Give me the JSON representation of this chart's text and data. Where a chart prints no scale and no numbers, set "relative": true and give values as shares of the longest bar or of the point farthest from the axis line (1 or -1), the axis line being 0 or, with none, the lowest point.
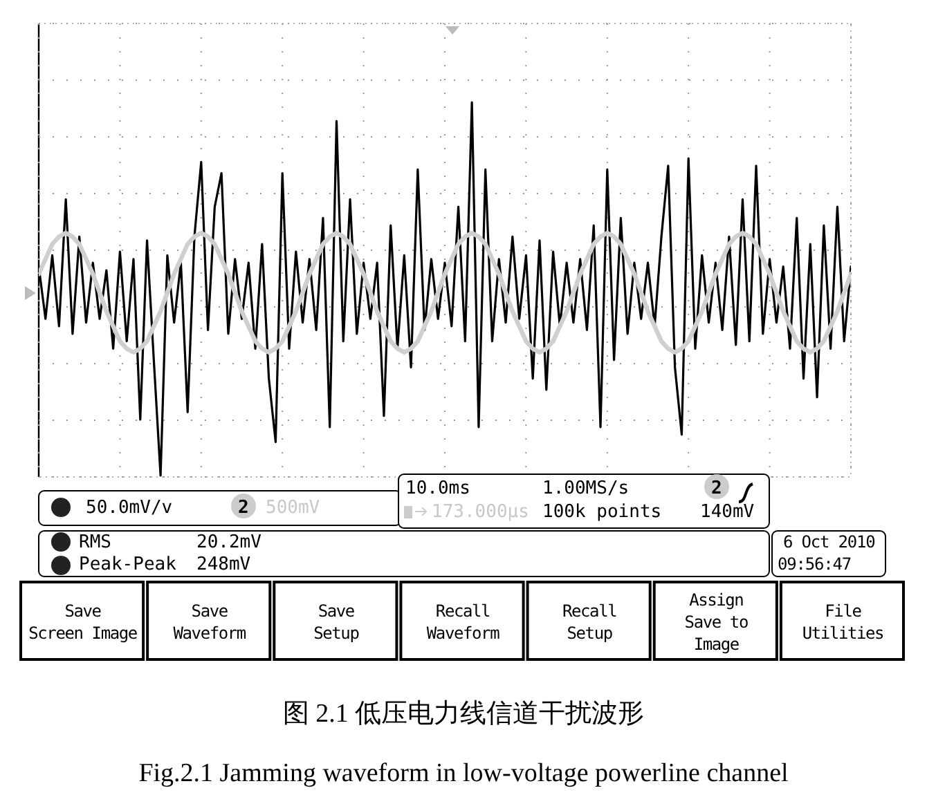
{
  "chart_data": {
    "type": "line",
    "relative": true,
    "grid": true,
    "title": "图 2.1  低压电力线信道干扰波形",
    "subtitle": "Fig.2.1 Jamming waveform in low-voltage powerline channel",
    "categories": [
      null,
      null,
      null,
      null,
      null,
      null,
      null,
      null,
      null,
      null,
      null,
      null,
      null,
      null,
      null,
      null,
      null,
      null,
      null,
      null,
      null,
      null,
      null,
      null,
      null,
      null,
      null,
      null,
      null,
      null,
      null,
      null,
      null,
      null,
      null,
      null,
      null,
      null,
      null,
      null,
      null,
      null,
      null,
      null,
      null,
      null,
      null,
      null,
      null,
      null,
      null,
      null,
      null,
      null,
      null,
      null,
      null,
      null,
      null,
      null,
      null,
      null,
      null,
      null,
      null,
      null,
      null,
      null,
      null,
      null,
      null,
      null,
      null,
      null,
      null,
      null,
      null,
      null,
      null,
      null,
      null,
      null,
      null,
      null,
      null,
      null,
      null,
      null,
      null,
      null,
      null,
      null,
      null,
      null,
      null,
      null,
      null,
      null,
      null,
      null,
      null,
      null,
      null,
      null,
      null,
      null,
      null,
      null,
      null,
      null,
      null,
      null,
      null,
      null,
      null,
      null,
      null,
      null,
      null,
      null,
      null
    ],
    "series": [
      {
        "color": "#000000",
        "values": [
          0.56,
          0.42,
          0.59,
          0.4,
          0.74,
          0.38,
          0.64,
          0.41,
          0.57,
          0.42,
          0.55,
          0.34,
          0.6,
          0.36,
          0.58,
          0.15,
          0.63,
          0.31,
          0,
          0.59,
          0.41,
          0.57,
          0.17,
          0.64,
          0.84,
          0.39,
          0.72,
          0.81,
          0.38,
          0.58,
          0.42,
          0.57,
          0.34,
          0.62,
          0.26,
          0.09,
          0.81,
          0.34,
          0.6,
          0.41,
          0.58,
          0.39,
          0.69,
          0.13,
          0.95,
          0.36,
          0.74,
          0.38,
          0.57,
          0.42,
          0.57,
          0.16,
          0.67,
          0.34,
          0.59,
          0.29,
          0.82,
          0.39,
          0.58,
          0.42,
          0.57,
          0.4,
          0.72,
          0.36,
          1,
          0.13,
          0.82,
          0.36,
          0.58,
          0.41,
          0.64,
          0.42,
          0.59,
          0.26,
          0.63,
          0.23,
          0.6,
          0.4,
          0.57,
          0.41,
          0.58,
          0.39,
          0.67,
          0.13,
          0.82,
          0.31,
          0.69,
          0.38,
          0.57,
          0.42,
          0.57,
          0.4,
          0.64,
          0.83,
          0.29,
          0.11,
          0.85,
          0.34,
          0.59,
          0.41,
          0.57,
          0.39,
          0.64,
          0.35,
          0.74,
          0.36,
          0.83,
          0.38,
          0.58,
          0.41,
          0.56,
          0.34,
          0.69,
          0.26,
          0.62,
          0.21,
          0.67,
          0.34,
          0.72,
          0.36,
          0.56
        ]
      },
      {
        "color": "#cfcfcf",
        "values": [
          0.54,
          0.58,
          0.62,
          0.64,
          0.65,
          0.64,
          0.62,
          0.58,
          0.54,
          0.49,
          0.44,
          0.4,
          0.36,
          0.34,
          0.33,
          0.34,
          0.36,
          0.4,
          0.44,
          0.49,
          0.54,
          0.58,
          0.62,
          0.64,
          0.65,
          0.64,
          0.62,
          0.58,
          0.54,
          0.49,
          0.44,
          0.4,
          0.36,
          0.34,
          0.33,
          0.34,
          0.36,
          0.4,
          0.44,
          0.49,
          0.54,
          0.58,
          0.62,
          0.64,
          0.65,
          0.64,
          0.62,
          0.58,
          0.54,
          0.49,
          0.44,
          0.4,
          0.36,
          0.34,
          0.33,
          0.34,
          0.36,
          0.4,
          0.44,
          0.49,
          0.54,
          0.58,
          0.62,
          0.64,
          0.65,
          0.64,
          0.62,
          0.58,
          0.54,
          0.49,
          0.44,
          0.4,
          0.36,
          0.34,
          0.33,
          0.34,
          0.36,
          0.4,
          0.44,
          0.49,
          0.54,
          0.58,
          0.62,
          0.64,
          0.65,
          0.64,
          0.62,
          0.58,
          0.54,
          0.49,
          0.44,
          0.4,
          0.36,
          0.34,
          0.33,
          0.34,
          0.36,
          0.4,
          0.44,
          0.49,
          0.54,
          0.58,
          0.62,
          0.64,
          0.65,
          0.64,
          0.62,
          0.58,
          0.54,
          0.49,
          0.44,
          0.4,
          0.36,
          0.34,
          0.33,
          0.34,
          0.36,
          0.4,
          0.44,
          0.49,
          0.54
        ]
      }
    ],
    "annotations": [
      "50.0mV/v",
      "2",
      "500mV",
      "10.0ms",
      "1.00MS/s",
      "2",
      "173.000μs",
      "100k points",
      "140mV",
      "RMS",
      "20.2mV",
      "Peak-Peak",
      "248mV",
      "6 Oct  2010",
      "09:56:47",
      "Save\nScreen Image",
      "Save\nWaveform",
      "Save\nSetup",
      "Recall\nWaveform",
      "Recall\nSetup",
      "Assign\nSave to\nImage",
      "File\nUtilities"
    ]
  }
}
